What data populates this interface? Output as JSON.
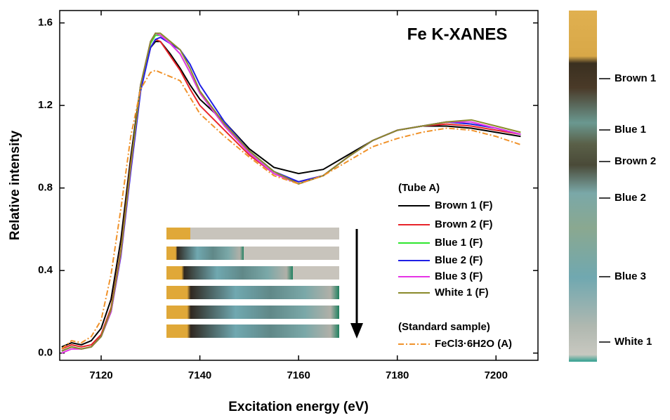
{
  "chart_data": {
    "type": "line",
    "annotation": "Fe K-XANES",
    "xlabel": "Excitation energy (eV)",
    "ylabel": "Relative intensity",
    "x": [
      7112,
      7114,
      7116,
      7118,
      7120,
      7122,
      7124,
      7126,
      7128,
      7130,
      7131,
      7132,
      7134,
      7136,
      7138,
      7140,
      7145,
      7150,
      7155,
      7160,
      7165,
      7170,
      7175,
      7180,
      7185,
      7190,
      7195,
      7200,
      7205
    ],
    "xlim": [
      7111.6,
      7208.5
    ],
    "xticks": [
      7120,
      7140,
      7160,
      7180,
      7200
    ],
    "ylim": [
      -0.035,
      1.66
    ],
    "yticks": [
      {
        "value": 0,
        "label": "0.0"
      },
      0.4,
      0.8,
      1.2,
      1.6
    ],
    "legend_groups": [
      "(Tube  A)",
      "(Standard sample)"
    ],
    "series": [
      {
        "name": "Brown 1 (F)",
        "color": "#000000",
        "style": "solid",
        "values": [
          0.03,
          0.05,
          0.04,
          0.06,
          0.12,
          0.26,
          0.55,
          0.95,
          1.3,
          1.48,
          1.51,
          1.51,
          1.45,
          1.38,
          1.3,
          1.23,
          1.12,
          0.99,
          0.9,
          0.87,
          0.89,
          0.96,
          1.03,
          1.08,
          1.1,
          1.1,
          1.09,
          1.07,
          1.05
        ]
      },
      {
        "name": "Brown 2 (F)",
        "color": "#e8242a",
        "style": "solid",
        "values": [
          0.02,
          0.04,
          0.03,
          0.04,
          0.09,
          0.22,
          0.5,
          0.92,
          1.28,
          1.48,
          1.52,
          1.51,
          1.44,
          1.37,
          1.28,
          1.2,
          1.08,
          0.96,
          0.87,
          0.83,
          0.86,
          0.95,
          1.03,
          1.08,
          1.1,
          1.11,
          1.1,
          1.08,
          1.06
        ]
      },
      {
        "name": "Blue 1 (F)",
        "color": "#2ee62e",
        "style": "solid",
        "values": [
          0.01,
          0.03,
          0.02,
          0.03,
          0.08,
          0.2,
          0.48,
          0.9,
          1.29,
          1.5,
          1.54,
          1.54,
          1.5,
          1.45,
          1.36,
          1.26,
          1.1,
          0.97,
          0.87,
          0.82,
          0.86,
          0.95,
          1.03,
          1.08,
          1.1,
          1.12,
          1.11,
          1.09,
          1.06
        ]
      },
      {
        "name": "Blue 2 (F)",
        "color": "#1f1fe6",
        "style": "solid",
        "values": [
          0.01,
          0.03,
          0.02,
          0.03,
          0.08,
          0.2,
          0.47,
          0.88,
          1.27,
          1.48,
          1.52,
          1.53,
          1.5,
          1.47,
          1.4,
          1.3,
          1.12,
          0.98,
          0.88,
          0.83,
          0.86,
          0.95,
          1.03,
          1.08,
          1.1,
          1.12,
          1.11,
          1.09,
          1.06
        ]
      },
      {
        "name": "Blue 3 (F)",
        "color": "#e633e6",
        "style": "solid",
        "values": [
          0.0,
          0.02,
          0.02,
          0.03,
          0.08,
          0.2,
          0.48,
          0.9,
          1.3,
          1.51,
          1.55,
          1.54,
          1.5,
          1.45,
          1.36,
          1.26,
          1.1,
          0.97,
          0.87,
          0.82,
          0.86,
          0.95,
          1.03,
          1.08,
          1.1,
          1.12,
          1.12,
          1.09,
          1.06
        ]
      },
      {
        "name": "White 1 (F)",
        "color": "#8a8a2a",
        "style": "solid",
        "values": [
          0.01,
          0.03,
          0.02,
          0.03,
          0.08,
          0.21,
          0.49,
          0.91,
          1.3,
          1.51,
          1.55,
          1.55,
          1.51,
          1.47,
          1.38,
          1.27,
          1.11,
          0.98,
          0.88,
          0.82,
          0.86,
          0.95,
          1.03,
          1.08,
          1.1,
          1.12,
          1.13,
          1.1,
          1.07
        ]
      },
      {
        "name": "FeCl3·6H2O (A)",
        "color": "#f0922a",
        "style": "dash-dot",
        "values": [
          0.02,
          0.06,
          0.05,
          0.08,
          0.16,
          0.38,
          0.7,
          1.05,
          1.28,
          1.36,
          1.37,
          1.36,
          1.34,
          1.32,
          1.24,
          1.16,
          1.05,
          0.95,
          0.86,
          0.82,
          0.86,
          0.93,
          1.0,
          1.04,
          1.07,
          1.09,
          1.08,
          1.05,
          1.01
        ]
      }
    ],
    "tube_labels": [
      "Brown 1",
      "Blue 1",
      "Brown 2",
      "Blue 2",
      "Blue 3",
      "White 1"
    ]
  }
}
